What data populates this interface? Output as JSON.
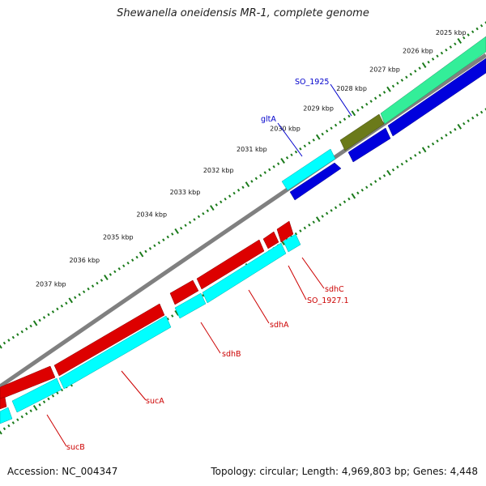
{
  "title": "Shewanella oneidensis MR-1, complete genome",
  "footer": {
    "accession": "Accession: NC_004347",
    "summary": "Topology: circular; Length: 4,969,803 bp; Genes: 4,448"
  },
  "ticks": [
    {
      "label": "2025 kbp",
      "t": 0.04
    },
    {
      "label": "2026 kbp",
      "t": 0.113
    },
    {
      "label": "2027 kbp",
      "t": 0.186
    },
    {
      "label": "2028 kbp",
      "t": 0.259
    },
    {
      "label": "2029 kbp",
      "t": 0.332
    },
    {
      "label": "2030 kbp",
      "t": 0.405
    },
    {
      "label": "2031 kbp",
      "t": 0.478
    },
    {
      "label": "2032 kbp",
      "t": 0.551
    },
    {
      "label": "2033 kbp",
      "t": 0.624
    },
    {
      "label": "2034 kbp",
      "t": 0.697
    },
    {
      "label": "2035 kbp",
      "t": 0.77
    },
    {
      "label": "2036 kbp",
      "t": 0.843
    },
    {
      "label": "2037 kbp",
      "t": 0.916
    }
  ],
  "colors": {
    "backbone": "#808080",
    "tick": "#1a7a1a",
    "cds_forward": "#0000dd",
    "cds_reverse": "#dd0000",
    "gene_forward": "#00ffff",
    "gene_reverse": "#00ffff",
    "gene_green": "#33ee99",
    "gene_olive": "#6b7a1a",
    "label_blue": "#0000cc",
    "label_red": "#cc0000"
  },
  "features": {
    "green_gene": {
      "name": "SO_1925"
    },
    "olive_gene": {
      "name": "SO_1925"
    },
    "gltA": {
      "name": "gltA"
    },
    "sdhC": {
      "name": "sdhC"
    },
    "SO_1927": {
      "name": "SO_1927.1"
    },
    "sdhA": {
      "name": "sdhA"
    },
    "sdhB": {
      "name": "sdhB"
    },
    "sucA": {
      "name": "sucA"
    },
    "sucB": {
      "name": "sucB"
    }
  },
  "labels": {
    "SO_1925": "SO_1925",
    "gltA": "gltA",
    "sdhC": "sdhC",
    "SO_1927": "SO_1927.1",
    "sdhA": "sdhA",
    "sdhB": "sdhB",
    "sucA": "sucA",
    "sucB": "sucB"
  }
}
